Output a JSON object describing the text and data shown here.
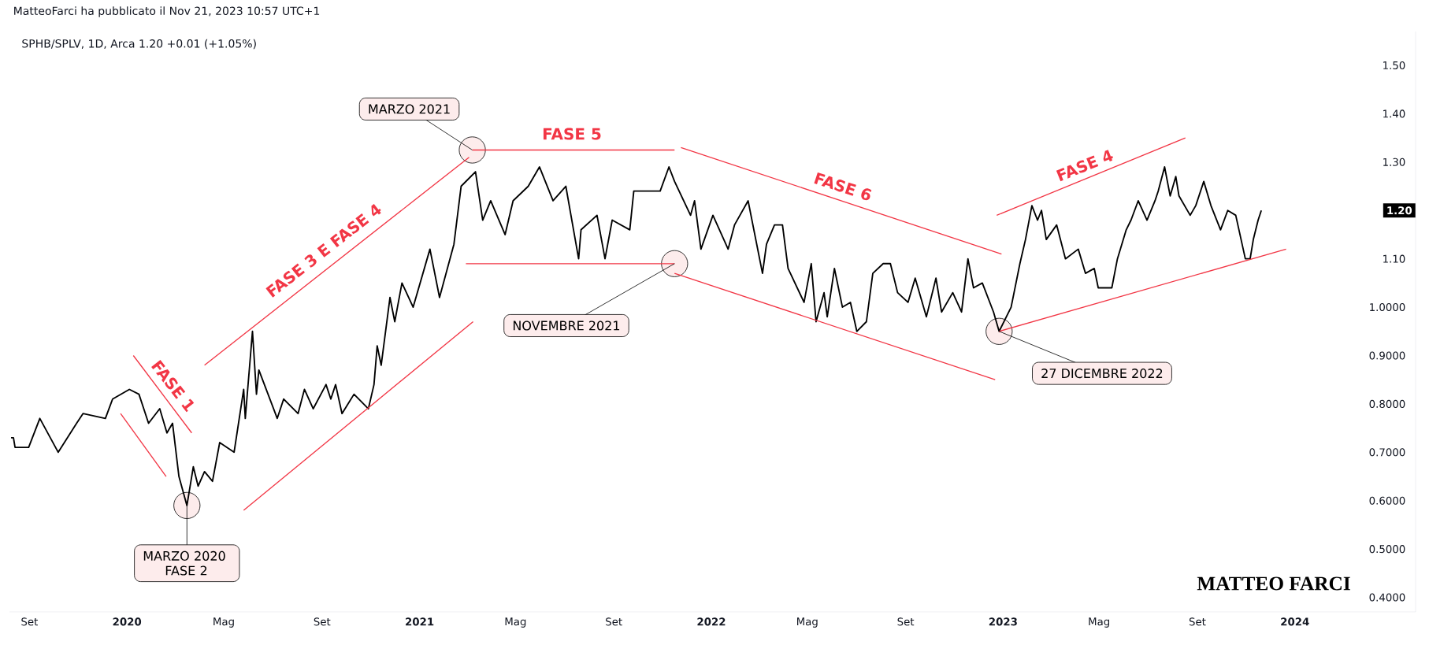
{
  "chart_data": {
    "type": "line",
    "title": "MatteoFarci ha pubblicato il Nov 21, 2023 10:57 UTC+1",
    "subtitle": "SPHB/SPLV, 1D, Arca  1.20  +0.01 (+1.05%)",
    "xlim": [
      "2019-08-07",
      "2024-05-31"
    ],
    "ylim": [
      0.37,
      1.57
    ],
    "xticks": [
      {
        "value": "2019-09-01",
        "label": "Set"
      },
      {
        "value": "2020-01-01",
        "label": "2020"
      },
      {
        "value": "2020-05-01",
        "label": "Mag"
      },
      {
        "value": "2020-09-01",
        "label": "Set"
      },
      {
        "value": "2021-01-01",
        "label": "2021"
      },
      {
        "value": "2021-05-01",
        "label": "Mag"
      },
      {
        "value": "2021-09-01",
        "label": "Set"
      },
      {
        "value": "2022-01-01",
        "label": "2022"
      },
      {
        "value": "2022-05-01",
        "label": "Mag"
      },
      {
        "value": "2022-09-01",
        "label": "Set"
      },
      {
        "value": "2023-01-01",
        "label": "2023"
      },
      {
        "value": "2023-05-01",
        "label": "Mag"
      },
      {
        "value": "2023-09-01",
        "label": "Set"
      },
      {
        "value": "2024-01-01",
        "label": "2024"
      }
    ],
    "yticks": [
      {
        "value": 0.4,
        "label": "0.4000"
      },
      {
        "value": 0.5,
        "label": "0.5000"
      },
      {
        "value": 0.6,
        "label": "0.6000"
      },
      {
        "value": 0.7,
        "label": "0.7000"
      },
      {
        "value": 0.8,
        "label": "0.8000"
      },
      {
        "value": 0.9,
        "label": "0.9000"
      },
      {
        "value": 1.0,
        "label": "1.0000"
      },
      {
        "value": 1.1,
        "label": "1.10"
      },
      {
        "value": 1.3,
        "label": "1.30"
      },
      {
        "value": 1.4,
        "label": "1.40"
      },
      {
        "value": 1.5,
        "label": "1.50"
      }
    ],
    "series": [
      {
        "color": "#000000",
        "x": [
          "2019-08-09",
          "2019-08-12",
          "2019-08-14",
          "2019-08-31",
          "2019-09-14",
          "2019-10-07",
          "2019-10-30",
          "2019-11-07",
          "2019-12-05",
          "2019-12-14",
          "2020-01-04",
          "2020-01-16",
          "2020-01-28",
          "2020-02-11",
          "2020-02-20",
          "2020-02-27",
          "2020-03-06",
          "2020-03-16",
          "2020-03-24",
          "2020-03-30",
          "2020-04-07",
          "2020-04-17",
          "2020-04-26",
          "2020-05-14",
          "2020-05-26",
          "2020-05-28",
          "2020-06-06",
          "2020-06-11",
          "2020-06-14",
          "2020-07-07",
          "2020-07-15",
          "2020-08-02",
          "2020-08-10",
          "2020-08-21",
          "2020-09-06",
          "2020-09-12",
          "2020-09-18",
          "2020-09-26",
          "2020-10-11",
          "2020-10-29",
          "2020-11-05",
          "2020-11-09",
          "2020-11-14",
          "2020-11-25",
          "2020-12-01",
          "2020-12-10",
          "2020-12-24",
          "2021-01-14",
          "2021-01-26",
          "2021-02-13",
          "2021-02-22",
          "2021-03-06",
          "2021-03-12",
          "2021-03-21",
          "2021-03-31",
          "2021-04-18",
          "2021-04-28",
          "2021-05-17",
          "2021-05-31",
          "2021-06-17",
          "2021-07-03",
          "2021-07-19",
          "2021-07-22",
          "2021-08-11",
          "2021-08-21",
          "2021-08-30",
          "2021-09-21",
          "2021-09-26",
          "2021-10-29",
          "2021-11-09",
          "2021-11-16",
          "2021-12-06",
          "2021-12-11",
          "2021-12-19",
          "2022-01-03",
          "2022-01-22",
          "2022-01-30",
          "2022-02-16",
          "2022-03-06",
          "2022-03-11",
          "2022-03-21",
          "2022-03-31",
          "2022-04-07",
          "2022-04-27",
          "2022-05-06",
          "2022-05-12",
          "2022-05-22",
          "2022-05-26",
          "2022-06-04",
          "2022-06-14",
          "2022-06-24",
          "2022-07-02",
          "2022-07-14",
          "2022-07-22",
          "2022-08-04",
          "2022-08-13",
          "2022-08-22",
          "2022-09-04",
          "2022-09-13",
          "2022-09-27",
          "2022-10-09",
          "2022-10-16",
          "2022-10-30",
          "2022-11-10",
          "2022-11-18",
          "2022-11-25",
          "2022-12-06",
          "2022-12-20",
          "2022-12-27",
          "2023-01-11",
          "2023-01-22",
          "2023-01-29",
          "2023-02-06",
          "2023-02-13",
          "2023-02-18",
          "2023-02-24",
          "2023-03-09",
          "2023-03-20",
          "2023-04-05",
          "2023-04-14",
          "2023-04-25",
          "2023-04-30",
          "2023-05-17",
          "2023-05-24",
          "2023-06-04",
          "2023-06-10",
          "2023-06-19",
          "2023-06-30",
          "2023-07-10",
          "2023-07-14",
          "2023-07-22",
          "2023-07-29",
          "2023-08-05",
          "2023-08-09",
          "2023-08-23",
          "2023-08-30",
          "2023-09-09",
          "2023-09-18",
          "2023-09-30",
          "2023-10-09",
          "2023-10-19",
          "2023-10-31",
          "2023-11-06",
          "2023-11-10",
          "2023-11-16",
          "2023-11-20"
        ],
        "values": [
          0.73,
          0.73,
          0.71,
          0.71,
          0.77,
          0.7,
          0.76,
          0.78,
          0.77,
          0.81,
          0.83,
          0.82,
          0.76,
          0.79,
          0.74,
          0.76,
          0.65,
          0.59,
          0.67,
          0.63,
          0.66,
          0.64,
          0.72,
          0.7,
          0.83,
          0.77,
          0.95,
          0.82,
          0.87,
          0.77,
          0.81,
          0.78,
          0.83,
          0.79,
          0.84,
          0.81,
          0.84,
          0.78,
          0.82,
          0.79,
          0.84,
          0.92,
          0.88,
          1.02,
          0.97,
          1.05,
          1.0,
          1.12,
          1.02,
          1.13,
          1.25,
          1.27,
          1.28,
          1.18,
          1.22,
          1.15,
          1.22,
          1.25,
          1.29,
          1.22,
          1.25,
          1.1,
          1.16,
          1.19,
          1.1,
          1.18,
          1.16,
          1.24,
          1.24,
          1.29,
          1.26,
          1.19,
          1.22,
          1.12,
          1.19,
          1.12,
          1.17,
          1.22,
          1.07,
          1.13,
          1.17,
          1.17,
          1.08,
          1.01,
          1.09,
          0.97,
          1.03,
          0.98,
          1.08,
          1.0,
          1.01,
          0.95,
          0.97,
          1.07,
          1.09,
          1.09,
          1.03,
          1.01,
          1.06,
          0.98,
          1.06,
          0.99,
          1.03,
          0.99,
          1.1,
          1.04,
          1.05,
          0.99,
          0.95,
          1.0,
          1.09,
          1.14,
          1.21,
          1.18,
          1.2,
          1.14,
          1.17,
          1.1,
          1.12,
          1.07,
          1.08,
          1.04,
          1.04,
          1.1,
          1.16,
          1.18,
          1.22,
          1.18,
          1.22,
          1.24,
          1.29,
          1.23,
          1.27,
          1.23,
          1.19,
          1.21,
          1.26,
          1.21,
          1.16,
          1.2,
          1.19,
          1.1,
          1.1,
          1.14,
          1.18,
          1.2
        ]
      },
      {
        "color": "#f23645",
        "x": [
          "2019-12-24",
          "2020-02-19"
        ],
        "values": [
          0.78,
          0.65
        ]
      },
      {
        "color": "#f23645",
        "x": [
          "2020-01-09",
          "2020-03-22"
        ],
        "values": [
          0.9,
          0.74
        ]
      },
      {
        "color": "#f23645",
        "x": [
          "2020-04-07",
          "2021-03-04"
        ],
        "values": [
          0.88,
          1.31
        ]
      },
      {
        "color": "#f23645",
        "x": [
          "2020-05-26",
          "2021-03-09"
        ],
        "values": [
          0.58,
          0.97
        ]
      },
      {
        "color": "#f23645",
        "x": [
          "2021-03-08",
          "2021-11-16"
        ],
        "values": [
          1.325,
          1.325
        ]
      },
      {
        "color": "#f23645",
        "x": [
          "2021-02-28",
          "2021-11-16"
        ],
        "values": [
          1.09,
          1.09
        ]
      },
      {
        "color": "#f23645",
        "x": [
          "2021-11-24",
          "2022-12-30"
        ],
        "values": [
          1.33,
          1.11
        ]
      },
      {
        "color": "#f23645",
        "x": [
          "2021-11-16",
          "2022-12-22"
        ],
        "values": [
          1.07,
          0.85
        ]
      },
      {
        "color": "#f23645",
        "x": [
          "2022-12-24",
          "2023-08-17"
        ],
        "values": [
          1.19,
          1.35
        ]
      },
      {
        "color": "#f23645",
        "x": [
          "2022-12-27",
          "2023-12-21"
        ],
        "values": [
          0.95,
          1.12
        ]
      }
    ],
    "annotations": [
      {
        "text": "MARZO 2021",
        "x": "2021-03-08",
        "y": 1.325
      },
      {
        "text": "NOVEMBRE 2021",
        "x": "2021-11-16",
        "y": 1.09
      },
      {
        "text": "MARZO 2020 FASE 2",
        "x": "2020-03-16",
        "y": 0.59
      },
      {
        "text": "27 DICEMBRE 2022",
        "x": "2022-12-27",
        "y": 0.95
      },
      "FASE 1",
      "FASE 3 E FASE 4",
      "FASE 5",
      "FASE 6",
      "FASE 4",
      {
        "text": "1.20",
        "y": 1.2
      },
      "MATTEO FARCI"
    ]
  }
}
